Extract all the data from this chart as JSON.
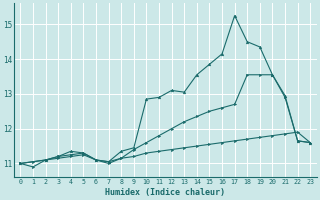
{
  "bg_color": "#cce8e8",
  "grid_color": "#ffffff",
  "line_color": "#1a6b6b",
  "x_label": "Humidex (Indice chaleur)",
  "xlim": [
    -0.5,
    23.5
  ],
  "ylim": [
    10.6,
    15.6
  ],
  "yticks": [
    11,
    12,
    13,
    14,
    15
  ],
  "xticks": [
    0,
    1,
    2,
    3,
    4,
    5,
    6,
    7,
    8,
    9,
    10,
    11,
    12,
    13,
    14,
    15,
    16,
    17,
    18,
    19,
    20,
    21,
    22,
    23
  ],
  "line1_x": [
    0,
    1,
    2,
    3,
    4,
    5,
    6,
    7,
    8,
    9,
    10,
    11,
    12,
    13,
    14,
    15,
    16,
    17,
    18,
    19,
    20,
    21,
    22,
    23
  ],
  "line1_y": [
    11.0,
    10.9,
    11.1,
    11.15,
    11.2,
    11.25,
    11.1,
    11.05,
    11.15,
    11.2,
    11.3,
    11.35,
    11.4,
    11.45,
    11.5,
    11.55,
    11.6,
    11.65,
    11.7,
    11.75,
    11.8,
    11.85,
    11.9,
    11.6
  ],
  "line2_x": [
    0,
    2,
    3,
    4,
    5,
    6,
    7,
    8,
    9,
    10,
    11,
    12,
    13,
    14,
    15,
    16,
    17,
    18,
    19,
    20,
    21,
    22,
    23
  ],
  "line2_y": [
    11.0,
    11.1,
    11.2,
    11.35,
    11.3,
    11.1,
    11.05,
    11.35,
    11.45,
    12.85,
    12.9,
    13.1,
    13.05,
    13.55,
    13.85,
    14.15,
    15.25,
    14.5,
    14.35,
    13.55,
    12.95,
    11.65,
    11.6
  ],
  "line3_x": [
    0,
    1,
    2,
    3,
    4,
    5,
    6,
    7,
    8,
    9,
    10,
    11,
    12,
    13,
    14,
    15,
    16,
    17,
    18,
    19,
    20,
    21,
    22,
    23
  ],
  "line3_y": [
    11.0,
    11.05,
    11.1,
    11.2,
    11.25,
    11.3,
    11.1,
    11.0,
    11.15,
    11.4,
    11.6,
    11.8,
    12.0,
    12.2,
    12.35,
    12.5,
    12.6,
    12.7,
    13.55,
    13.55,
    13.55,
    12.9,
    11.65,
    11.6
  ]
}
